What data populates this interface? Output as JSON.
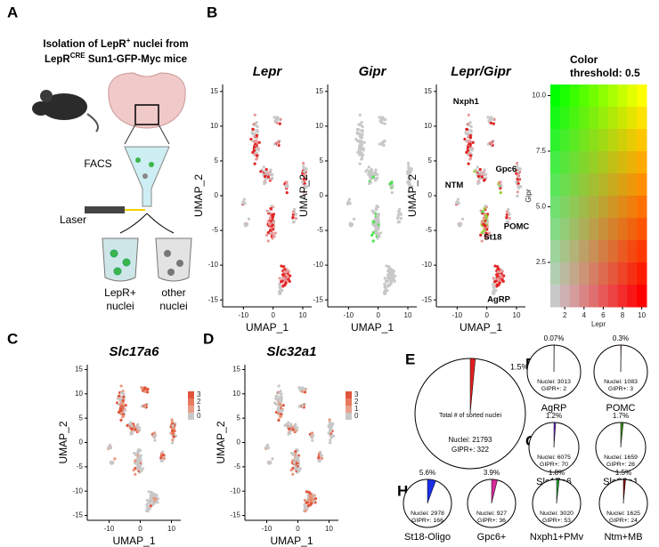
{
  "panels": {
    "A": {
      "label": "A",
      "title_line1": [
        "Isolation of LepR",
        "+",
        " nuclei from"
      ],
      "title_line2": [
        "LepR",
        "CRE",
        " Sun1-GFP-Myc mice"
      ],
      "facs": "FACS",
      "laser": "Laser",
      "tube1": [
        "LepR+",
        "nuclei"
      ],
      "tube2": [
        "other",
        "nuclei"
      ]
    },
    "B": {
      "label": "B",
      "plots": [
        "Lepr",
        "Gipr",
        "Lepr/Gipr"
      ],
      "clusters": [
        "Nxph1",
        "NTM",
        "Gpc6",
        "POMC",
        "St18",
        "AgRP"
      ],
      "threshold": [
        "Color",
        "threshold: 0.5"
      ],
      "heat_ylabel": "Gipr",
      "heat_xlabel": "Lepr",
      "heat_yticks": [
        2.5,
        {
          "value": 5,
          "label": "5.0"
        },
        {
          "value": 7.5,
          "label": "7.5"
        },
        {
          "value": 10,
          "label": "10.0"
        }
      ],
      "heat_xticks": [
        2,
        4,
        6,
        8,
        10
      ]
    },
    "C": {
      "label": "C",
      "title": "Slc17a6",
      "legend": [
        3,
        2,
        1,
        0
      ]
    },
    "D": {
      "label": "D",
      "title": "Slc32a1",
      "legend": [
        3,
        2,
        1,
        0
      ]
    },
    "E": {
      "label": "E",
      "pct": "1.5%",
      "caption": "Total # of sorted nuclei",
      "nuclei": "Nuclei: 21793",
      "gipr": "GIPR+: 322",
      "color": "#e02020"
    },
    "F": {
      "label": "F",
      "pies": [
        {
          "pct": "0.07%",
          "nuclei": "Nuclei: 3013",
          "gipr": "GIPR+: 2",
          "name": "AgRP",
          "color": "#2a3fd8"
        },
        {
          "pct": "0.3%",
          "nuclei": "Nuclei: 1083",
          "gipr": "GIPR+: 3",
          "name": "POMC",
          "color": "#b51f1f"
        }
      ]
    },
    "G": {
      "label": "G",
      "pies": [
        {
          "pct": "1.2%",
          "nuclei": "Nuclei: 6075",
          "gipr": "GIPR+: 70",
          "name": "Slc17a6",
          "color": "#6a2bc4"
        },
        {
          "pct": "1.7%",
          "nuclei": "Nuclei: 1659",
          "gipr": "GIPR+: 28",
          "name": "Slc32a1",
          "color": "#3d8b1f"
        }
      ]
    },
    "H": {
      "label": "H",
      "pies": [
        {
          "pct": "5.6%",
          "nuclei": "Nuclei: 2978",
          "gipr": "GIPR+: 166",
          "name": "St18-Oligo",
          "color": "#1a2fe6"
        },
        {
          "pct": "3.9%",
          "nuclei": "Nuclei: 927",
          "gipr": "GIPR+: 36",
          "name": "Gpc6+",
          "color": "#d42a9a"
        },
        {
          "pct": "1.8%",
          "nuclei": "Nuclei: 3020",
          "gipr": "GIPR+: 53",
          "name": "Nxph1+PMv",
          "color": "#2c9a3a"
        },
        {
          "pct": "1.5%",
          "nuclei": "Nuclei: 1625",
          "gipr": "GIPR+: 24",
          "name": "Ntm+MB",
          "color": "#8a1010"
        }
      ]
    }
  },
  "umap_axes": {
    "xlabel": "UMAP_1",
    "ylabel": "UMAP_2",
    "xticks": [
      -10,
      0,
      10
    ],
    "yticks": [
      -15,
      -10,
      -5,
      0,
      5,
      10,
      15
    ]
  }
}
